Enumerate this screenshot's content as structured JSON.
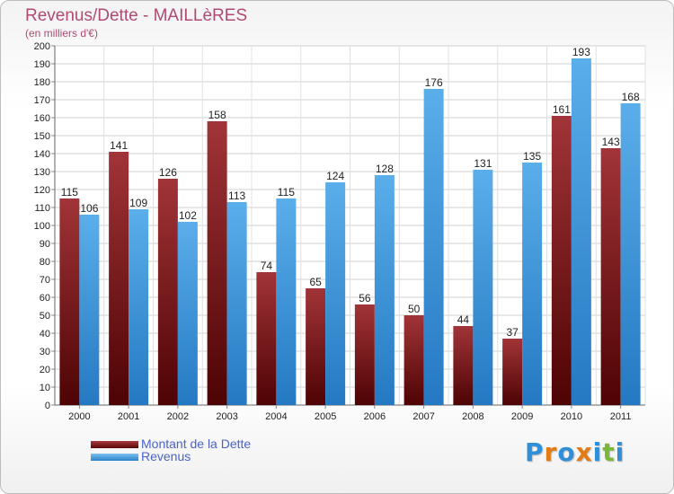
{
  "title": "Revenus/Dette - MAILLèRES",
  "subtitle": "(en milliers d'€)",
  "colors": {
    "dette": "#7a1216",
    "revenus": "#3d95db",
    "text": "#b04a72",
    "legend_text": "#4a63c8"
  },
  "logo": {
    "text": "Proxiti",
    "letters": [
      "P",
      "r",
      "o",
      "x",
      "i",
      "t",
      "i"
    ],
    "colors": [
      "#2f8fd8",
      "#e07b16",
      "#2f8fd8",
      "#e07b16",
      "#2f8fd8",
      "#7ab83a",
      "#2f8fd8"
    ]
  },
  "legend": [
    {
      "label": "Montant de la Dette",
      "color": "#7a1216"
    },
    {
      "label": "Revenus",
      "color": "#3d95db"
    }
  ],
  "chart_data": {
    "type": "bar",
    "title": "Revenus/Dette - MAILLèRES",
    "subtitle": "(en milliers d'€)",
    "categories": [
      "2000",
      "2001",
      "2002",
      "2003",
      "2004",
      "2005",
      "2006",
      "2007",
      "2008",
      "2009",
      "2010",
      "2011"
    ],
    "series": [
      {
        "name": "Montant de la Dette",
        "values": [
          115,
          141,
          126,
          158,
          74,
          65,
          56,
          50,
          44,
          37,
          161,
          143
        ]
      },
      {
        "name": "Revenus",
        "values": [
          106,
          109,
          102,
          113,
          115,
          124,
          128,
          176,
          131,
          135,
          193,
          168
        ]
      }
    ],
    "ylim": [
      0,
      200
    ],
    "ytick_step": 10,
    "grid": true,
    "legend_position": "bottom-left"
  }
}
